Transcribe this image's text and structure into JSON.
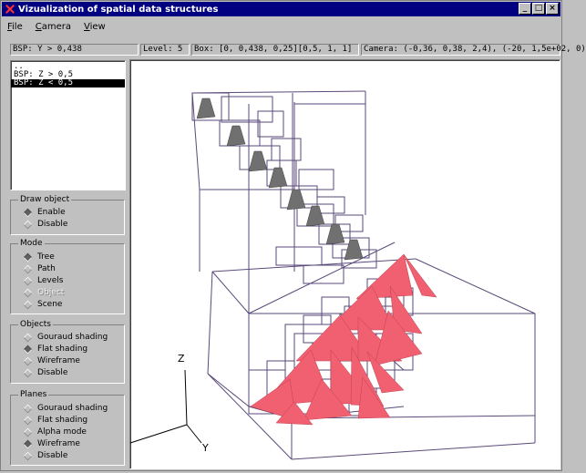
{
  "window": {
    "title": "Vizualization of spatial data structures",
    "minimize": "_",
    "maximize": "□",
    "close": "×"
  },
  "menu": [
    {
      "first": "F",
      "rest": "ile"
    },
    {
      "first": "C",
      "rest": "amera"
    },
    {
      "first": "V",
      "rest": "iew"
    }
  ],
  "status": {
    "node": "BSP: Y > 0,438",
    "level": "Level: 5",
    "box": "Box: [0, 0,438, 0,25][0,5, 1, 1]",
    "camera": "Camera: (-0,36, 0,38, 2,4), (-20, 1,5e+02, 0)"
  },
  "tree_list": {
    "items": [
      "..",
      "BSP: Z > 0,5",
      "BSP: Z < 0,5"
    ],
    "selected_index": 2
  },
  "draw_object": {
    "title": "Draw object",
    "options": [
      {
        "label": "Enable",
        "on": true
      },
      {
        "label": "Disable",
        "on": false
      }
    ]
  },
  "mode": {
    "title": "Mode",
    "options": [
      {
        "label": "Tree",
        "on": true
      },
      {
        "label": "Path",
        "on": false
      },
      {
        "label": "Levels",
        "on": false
      },
      {
        "label": "Object",
        "on": false,
        "disabled": true
      },
      {
        "label": "Scene",
        "on": false
      }
    ]
  },
  "objects": {
    "title": "Objects",
    "options": [
      {
        "label": "Gouraud shading",
        "on": false
      },
      {
        "label": "Flat shading",
        "on": true
      },
      {
        "label": "Wireframe",
        "on": false
      },
      {
        "label": "Disable",
        "on": false
      }
    ]
  },
  "planes": {
    "title": "Planes",
    "options": [
      {
        "label": "Gouraud shading",
        "on": false
      },
      {
        "label": "Flat shading",
        "on": false
      },
      {
        "label": "Alpha mode",
        "on": false
      },
      {
        "label": "Wireframe",
        "on": true
      },
      {
        "label": "Disable",
        "on": false
      }
    ]
  },
  "viewport": {
    "axis_z": "Z",
    "axis_y": "Y",
    "wire_color": "#5a4a7a",
    "object_color": "#f06070",
    "selected_color": "#707070"
  }
}
